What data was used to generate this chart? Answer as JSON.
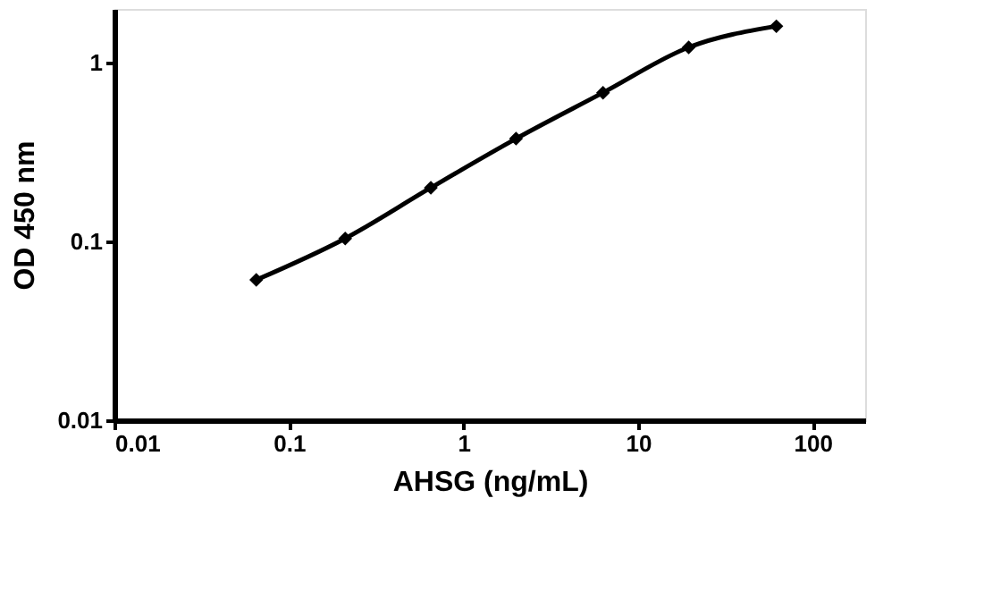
{
  "chart_data": {
    "type": "line",
    "xlabel": "AHSG (ng/mL)",
    "ylabel": "OD 450 nm",
    "log": "xy",
    "marker": "diamond",
    "line_style": "solid",
    "grid": false,
    "xlim": [
      0.01,
      200
    ],
    "xticks": [
      0.01,
      0.1,
      1,
      10,
      100
    ],
    "ylim": [
      0.01,
      2
    ],
    "yticks": [
      0.01,
      0.1,
      1
    ],
    "series": [
      {
        "color": "#000000",
        "x": [
          0.065,
          0.21,
          0.65,
          2.0,
          6.3,
          19.5,
          62
        ],
        "values": [
          0.061,
          0.104,
          0.2,
          0.376,
          0.68,
          1.22,
          1.6
        ]
      }
    ]
  }
}
